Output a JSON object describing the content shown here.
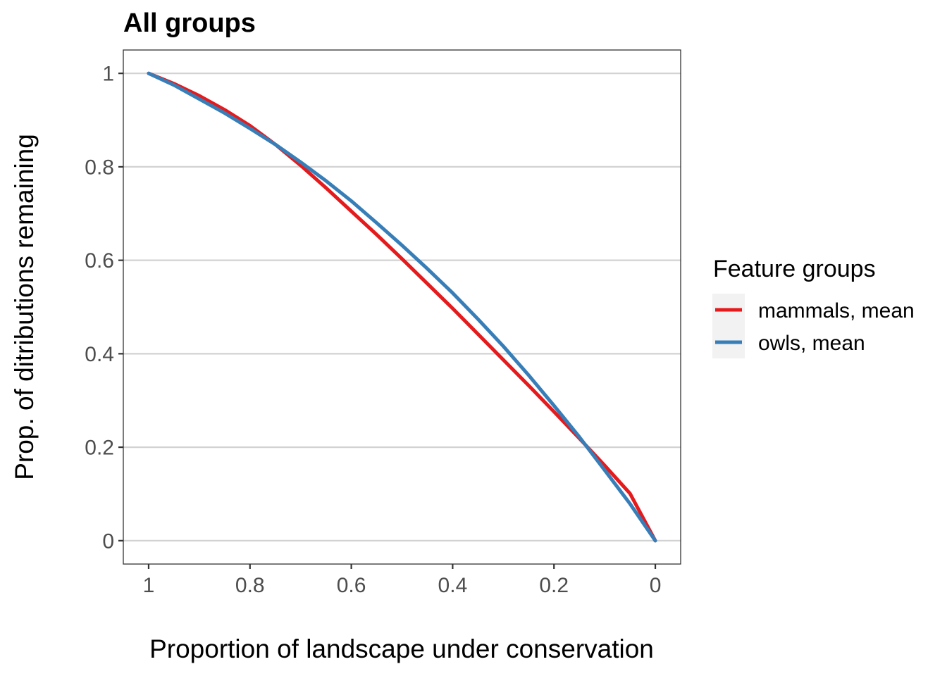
{
  "chart_data": {
    "type": "line",
    "title": "All groups",
    "xlabel": "Proportion of landscape under conservation",
    "ylabel": "Prop. of ditributions remaining",
    "xlim": [
      1.05,
      -0.05
    ],
    "ylim": [
      -0.05,
      1.05
    ],
    "x_reversed": true,
    "x_ticks": [
      1,
      0.8,
      0.6,
      0.4,
      0.2,
      0
    ],
    "x_tick_labels": [
      "1",
      "0.8",
      "0.6",
      "0.4",
      "0.2",
      "0"
    ],
    "y_ticks": [
      0,
      0.2,
      0.4,
      0.6,
      0.8,
      1
    ],
    "y_tick_labels": [
      "0",
      "0.2",
      "0.4",
      "0.6",
      "0.8",
      "1"
    ],
    "grid": "horizontal major",
    "legend": {
      "title": "Feature groups",
      "position": "right"
    },
    "series": [
      {
        "name": "mammals, mean",
        "color": "#e41a1c",
        "x": [
          1.0,
          0.95,
          0.9,
          0.85,
          0.8,
          0.75,
          0.7,
          0.65,
          0.6,
          0.55,
          0.5,
          0.45,
          0.4,
          0.35,
          0.3,
          0.25,
          0.2,
          0.15,
          0.1,
          0.05,
          0.0
        ],
        "y": [
          1.0,
          0.978,
          0.952,
          0.922,
          0.888,
          0.848,
          0.803,
          0.755,
          0.705,
          0.655,
          0.603,
          0.55,
          0.497,
          0.442,
          0.387,
          0.332,
          0.276,
          0.219,
          0.161,
          0.101,
          0.0
        ]
      },
      {
        "name": "owls, mean",
        "color": "#377eb8",
        "x": [
          1.0,
          0.95,
          0.9,
          0.85,
          0.8,
          0.75,
          0.7,
          0.65,
          0.6,
          0.55,
          0.5,
          0.45,
          0.4,
          0.35,
          0.3,
          0.25,
          0.2,
          0.15,
          0.1,
          0.05,
          0.0
        ],
        "y": [
          1.0,
          0.975,
          0.945,
          0.915,
          0.882,
          0.848,
          0.81,
          0.77,
          0.727,
          0.68,
          0.632,
          0.582,
          0.53,
          0.474,
          0.416,
          0.354,
          0.289,
          0.222,
          0.151,
          0.079,
          0.0
        ]
      }
    ]
  }
}
